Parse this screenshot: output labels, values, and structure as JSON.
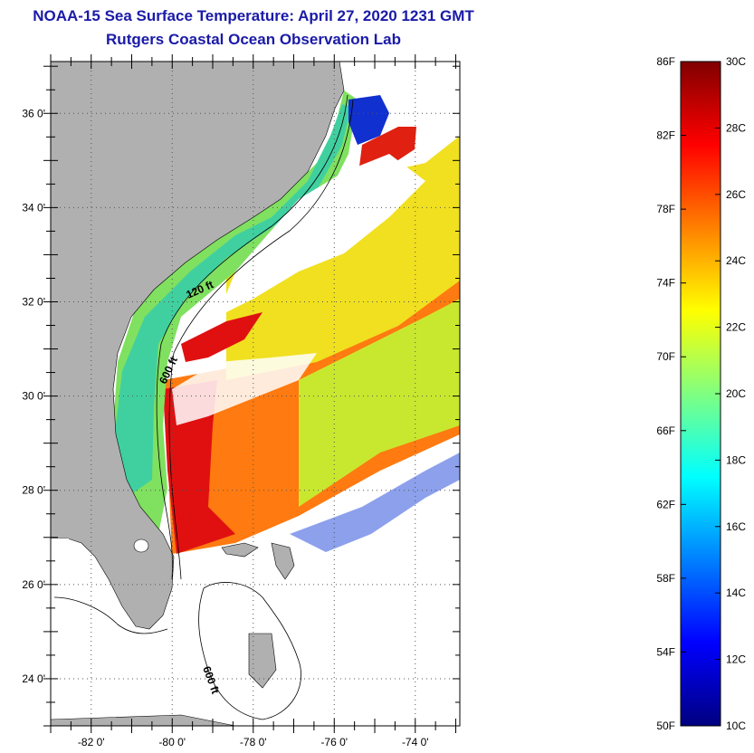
{
  "title": {
    "line1": "NOAA-15 Sea Surface Temperature:  April 27, 2020 1231 GMT",
    "line2": "Rutgers Coastal Ocean Observation Lab"
  },
  "axes": {
    "lat_labels": [
      {
        "value": 36,
        "text": "36 0'"
      },
      {
        "value": 34,
        "text": "34 0'"
      },
      {
        "value": 32,
        "text": "32 0'"
      },
      {
        "value": 30,
        "text": "30 0'"
      },
      {
        "value": 28,
        "text": "28 0'"
      },
      {
        "value": 26,
        "text": "26 0'"
      },
      {
        "value": 24,
        "text": "24 0'"
      }
    ],
    "lon_labels": [
      {
        "value": -82,
        "text": "-82 0'"
      },
      {
        "value": -80,
        "text": "-80 0'"
      },
      {
        "value": -78,
        "text": "-78 0'"
      },
      {
        "value": -76,
        "text": "-76 0'"
      },
      {
        "value": -74,
        "text": "-74 0'"
      }
    ],
    "lat_range": [
      23.0,
      37.1
    ],
    "lon_range": [
      -83.0,
      -72.9
    ]
  },
  "contours": {
    "label_120": "120 ft",
    "label_600": "600 ft",
    "label_600_south": "600 ft"
  },
  "colorbar": {
    "fahrenheit": [
      "86F",
      "82F",
      "78F",
      "74F",
      "70F",
      "66F",
      "62F",
      "58F",
      "54F",
      "50F"
    ],
    "celsius": [
      "30C",
      "28C",
      "26C",
      "24C",
      "22C",
      "20C",
      "18C",
      "16C",
      "14C",
      "12C",
      "10C"
    ],
    "colors": [
      "#000080",
      "#0000ff",
      "#0080ff",
      "#00ffff",
      "#80ff80",
      "#ffff00",
      "#ff8000",
      "#ff0000",
      "#800000"
    ]
  },
  "colors": {
    "land": "#b0b0b0",
    "cloud": "#ffffff",
    "title": "#1a1aa8"
  }
}
